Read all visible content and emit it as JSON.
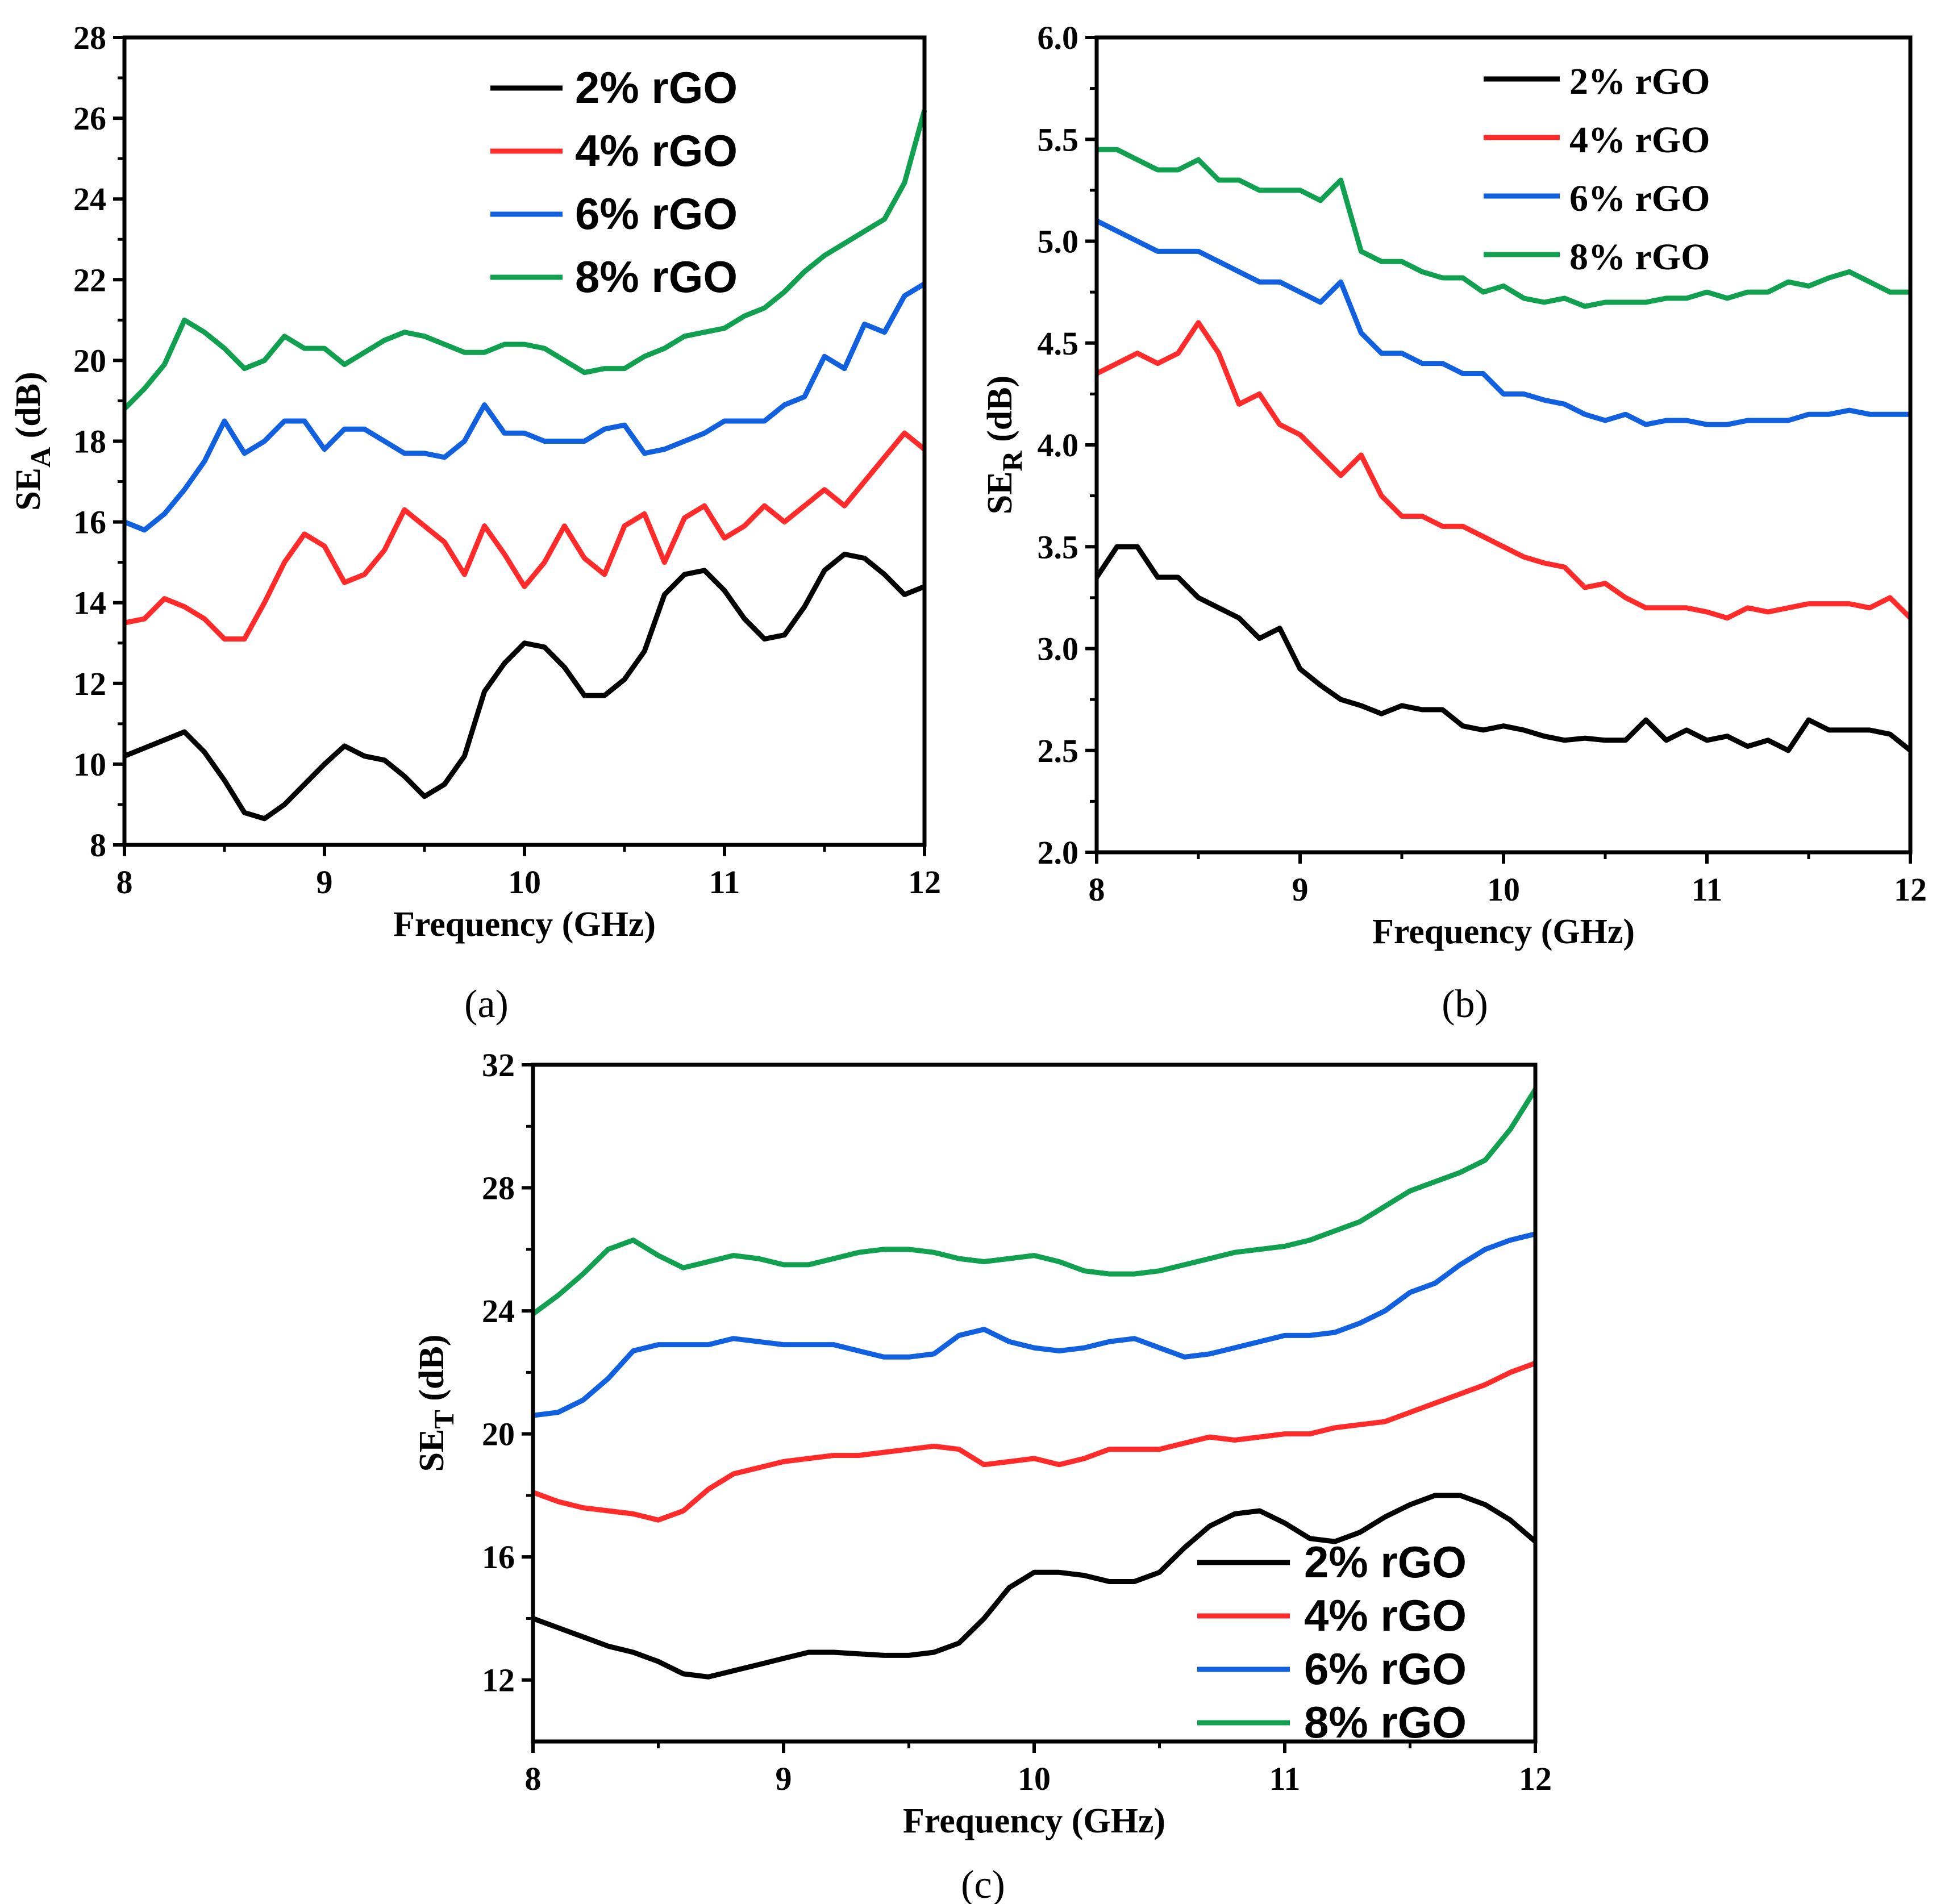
{
  "colors": {
    "2% rGO": "#000000",
    "4% rGO": "#ff2a2a",
    "6% rGO": "#1060e0",
    "8% rGO": "#10a050"
  },
  "chart_data": [
    {
      "type": "line",
      "panel_label": "(a)",
      "xlabel": "Frequency (GHz)",
      "ylabel": "SE",
      "ylabel_sub": "A",
      "ylabel_unit": " (dB)",
      "xlim": [
        8,
        12
      ],
      "ylim": [
        8,
        28
      ],
      "xticks": [
        8,
        9,
        10,
        11,
        12
      ],
      "yticks": [
        8,
        10,
        12,
        14,
        16,
        18,
        20,
        22,
        24,
        26,
        28
      ],
      "legend": "top-right",
      "legend_style": "sans",
      "x": [
        8.0,
        8.1,
        8.2,
        8.3,
        8.4,
        8.5,
        8.6,
        8.7,
        8.8,
        8.9,
        9.0,
        9.1,
        9.2,
        9.3,
        9.4,
        9.5,
        9.6,
        9.7,
        9.8,
        9.9,
        10.0,
        10.1,
        10.2,
        10.3,
        10.4,
        10.5,
        10.6,
        10.7,
        10.8,
        10.9,
        11.0,
        11.1,
        11.2,
        11.3,
        11.4,
        11.5,
        11.6,
        11.7,
        11.8,
        11.9,
        12.0
      ],
      "series": [
        {
          "name": "2% rGO",
          "values": [
            10.2,
            10.4,
            10.6,
            10.8,
            10.3,
            9.6,
            8.8,
            8.65,
            9.0,
            9.5,
            10.0,
            10.45,
            10.2,
            10.1,
            9.7,
            9.2,
            9.5,
            10.2,
            11.8,
            12.5,
            13.0,
            12.9,
            12.4,
            11.7,
            11.7,
            12.1,
            12.8,
            14.2,
            14.7,
            14.8,
            14.3,
            13.6,
            13.1,
            13.2,
            13.9,
            14.8,
            15.2,
            15.1,
            14.7,
            14.2,
            14.4
          ]
        },
        {
          "name": "4% rGO",
          "values": [
            13.5,
            13.6,
            14.1,
            13.9,
            13.6,
            13.1,
            13.1,
            14.0,
            15.0,
            15.7,
            15.4,
            14.5,
            14.7,
            15.3,
            16.3,
            15.9,
            15.5,
            14.7,
            15.9,
            15.2,
            14.4,
            15.0,
            15.9,
            15.1,
            14.7,
            15.9,
            16.2,
            15.0,
            16.1,
            16.4,
            15.6,
            15.9,
            16.4,
            16.0,
            16.4,
            16.8,
            16.4,
            17.0,
            17.6,
            18.2,
            17.8
          ]
        },
        {
          "name": "6% rGO",
          "values": [
            16.0,
            15.8,
            16.2,
            16.8,
            17.5,
            18.5,
            17.7,
            18.0,
            18.5,
            18.5,
            17.8,
            18.3,
            18.3,
            18.0,
            17.7,
            17.7,
            17.6,
            18.0,
            18.9,
            18.2,
            18.2,
            18.0,
            18.0,
            18.0,
            18.3,
            18.4,
            17.7,
            17.8,
            18.0,
            18.2,
            18.5,
            18.5,
            18.5,
            18.9,
            19.1,
            20.1,
            19.8,
            20.9,
            20.7,
            21.6,
            21.9
          ]
        },
        {
          "name": "8% rGO",
          "values": [
            18.8,
            19.3,
            19.9,
            21.0,
            20.7,
            20.3,
            19.8,
            20.0,
            20.6,
            20.3,
            20.3,
            19.9,
            20.2,
            20.5,
            20.7,
            20.6,
            20.4,
            20.2,
            20.2,
            20.4,
            20.4,
            20.3,
            20.0,
            19.7,
            19.8,
            19.8,
            20.1,
            20.3,
            20.6,
            20.7,
            20.8,
            21.1,
            21.3,
            21.7,
            22.2,
            22.6,
            22.9,
            23.2,
            23.5,
            24.4,
            26.2
          ]
        }
      ]
    },
    {
      "type": "line",
      "panel_label": "(b)",
      "xlabel": "Frequency (GHz)",
      "ylabel": "SE",
      "ylabel_sub": "R",
      "ylabel_unit": " (dB)",
      "xlim": [
        8,
        12
      ],
      "ylim": [
        2.0,
        6.0
      ],
      "xticks": [
        8,
        9,
        10,
        11,
        12
      ],
      "yticks": [
        "2.0",
        "2.5",
        "3.0",
        "3.5",
        "4.0",
        "4.5",
        "5.0",
        "5.5",
        "6.0"
      ],
      "legend": "top-right",
      "legend_style": "serif",
      "x": [
        8.0,
        8.1,
        8.2,
        8.3,
        8.4,
        8.5,
        8.6,
        8.7,
        8.8,
        8.9,
        9.0,
        9.1,
        9.2,
        9.3,
        9.4,
        9.5,
        9.6,
        9.7,
        9.8,
        9.9,
        10.0,
        10.1,
        10.2,
        10.3,
        10.4,
        10.5,
        10.6,
        10.7,
        10.8,
        10.9,
        11.0,
        11.1,
        11.2,
        11.3,
        11.4,
        11.5,
        11.6,
        11.7,
        11.8,
        11.9,
        12.0
      ],
      "series": [
        {
          "name": "2% rGO",
          "values": [
            3.35,
            3.5,
            3.5,
            3.35,
            3.35,
            3.25,
            3.2,
            3.15,
            3.05,
            3.1,
            2.9,
            2.82,
            2.75,
            2.72,
            2.68,
            2.72,
            2.7,
            2.7,
            2.62,
            2.6,
            2.62,
            2.6,
            2.57,
            2.55,
            2.56,
            2.55,
            2.55,
            2.65,
            2.55,
            2.6,
            2.55,
            2.57,
            2.52,
            2.55,
            2.5,
            2.65,
            2.6,
            2.6,
            2.6,
            2.58,
            2.5
          ]
        },
        {
          "name": "4% rGO",
          "values": [
            4.35,
            4.4,
            4.45,
            4.4,
            4.45,
            4.6,
            4.45,
            4.2,
            4.25,
            4.1,
            4.05,
            3.95,
            3.85,
            3.95,
            3.75,
            3.65,
            3.65,
            3.6,
            3.6,
            3.55,
            3.5,
            3.45,
            3.42,
            3.4,
            3.3,
            3.32,
            3.25,
            3.2,
            3.2,
            3.2,
            3.18,
            3.15,
            3.2,
            3.18,
            3.2,
            3.22,
            3.22,
            3.22,
            3.2,
            3.25,
            3.15
          ]
        },
        {
          "name": "6% rGO",
          "values": [
            5.1,
            5.05,
            5.0,
            4.95,
            4.95,
            4.95,
            4.9,
            4.85,
            4.8,
            4.8,
            4.75,
            4.7,
            4.8,
            4.55,
            4.45,
            4.45,
            4.4,
            4.4,
            4.35,
            4.35,
            4.25,
            4.25,
            4.22,
            4.2,
            4.15,
            4.12,
            4.15,
            4.1,
            4.12,
            4.12,
            4.1,
            4.1,
            4.12,
            4.12,
            4.12,
            4.15,
            4.15,
            4.17,
            4.15,
            4.15,
            4.15
          ]
        },
        {
          "name": "8% rGO",
          "values": [
            5.45,
            5.45,
            5.4,
            5.35,
            5.35,
            5.4,
            5.3,
            5.3,
            5.25,
            5.25,
            5.25,
            5.2,
            5.3,
            4.95,
            4.9,
            4.9,
            4.85,
            4.82,
            4.82,
            4.75,
            4.78,
            4.72,
            4.7,
            4.72,
            4.68,
            4.7,
            4.7,
            4.7,
            4.72,
            4.72,
            4.75,
            4.72,
            4.75,
            4.75,
            4.8,
            4.78,
            4.82,
            4.85,
            4.8,
            4.75,
            4.75
          ]
        }
      ]
    },
    {
      "type": "line",
      "panel_label": "(c)",
      "xlabel": "Frequency (GHz)",
      "ylabel": "SE",
      "ylabel_sub": "T",
      "ylabel_unit": " (dB)",
      "xlim": [
        8,
        12
      ],
      "ylim": [
        10,
        32
      ],
      "xticks": [
        8,
        9,
        10,
        11,
        12
      ],
      "yticks": [
        12,
        16,
        20,
        24,
        28,
        32
      ],
      "legend": "bottom-right",
      "legend_style": "sans",
      "x": [
        8.0,
        8.1,
        8.2,
        8.3,
        8.4,
        8.5,
        8.6,
        8.7,
        8.8,
        8.9,
        9.0,
        9.1,
        9.2,
        9.3,
        9.4,
        9.5,
        9.6,
        9.7,
        9.8,
        9.9,
        10.0,
        10.1,
        10.2,
        10.3,
        10.4,
        10.5,
        10.6,
        10.7,
        10.8,
        10.9,
        11.0,
        11.1,
        11.2,
        11.3,
        11.4,
        11.5,
        11.6,
        11.7,
        11.8,
        11.9,
        12.0
      ],
      "series": [
        {
          "name": "2% rGO",
          "values": [
            14.0,
            13.7,
            13.4,
            13.1,
            12.9,
            12.6,
            12.2,
            12.1,
            12.3,
            12.5,
            12.7,
            12.9,
            12.9,
            12.85,
            12.8,
            12.8,
            12.9,
            13.2,
            14.0,
            15.0,
            15.5,
            15.5,
            15.4,
            15.2,
            15.2,
            15.5,
            16.3,
            17.0,
            17.4,
            17.5,
            17.1,
            16.6,
            16.5,
            16.8,
            17.3,
            17.7,
            18.0,
            18.0,
            17.7,
            17.2,
            16.5
          ]
        },
        {
          "name": "4% rGO",
          "values": [
            18.1,
            17.8,
            17.6,
            17.5,
            17.4,
            17.2,
            17.5,
            18.2,
            18.7,
            18.9,
            19.1,
            19.2,
            19.3,
            19.3,
            19.4,
            19.5,
            19.6,
            19.5,
            19.0,
            19.1,
            19.2,
            19.0,
            19.2,
            19.5,
            19.5,
            19.5,
            19.7,
            19.9,
            19.8,
            19.9,
            20.0,
            20.0,
            20.2,
            20.3,
            20.4,
            20.7,
            21.0,
            21.3,
            21.6,
            22.0,
            22.3
          ]
        },
        {
          "name": "6% rGO",
          "values": [
            20.6,
            20.7,
            21.1,
            21.8,
            22.7,
            22.9,
            22.9,
            22.9,
            23.1,
            23.0,
            22.9,
            22.9,
            22.9,
            22.7,
            22.5,
            22.5,
            22.6,
            23.2,
            23.4,
            23.0,
            22.8,
            22.7,
            22.8,
            23.0,
            23.1,
            22.8,
            22.5,
            22.6,
            22.8,
            23.0,
            23.2,
            23.2,
            23.3,
            23.6,
            24.0,
            24.6,
            24.9,
            25.5,
            26.0,
            26.3,
            26.5
          ]
        },
        {
          "name": "8% rGO",
          "values": [
            23.9,
            24.5,
            25.2,
            26.0,
            26.3,
            25.8,
            25.4,
            25.6,
            25.8,
            25.7,
            25.5,
            25.5,
            25.7,
            25.9,
            26.0,
            26.0,
            25.9,
            25.7,
            25.6,
            25.7,
            25.8,
            25.6,
            25.3,
            25.2,
            25.2,
            25.3,
            25.5,
            25.7,
            25.9,
            26.0,
            26.1,
            26.3,
            26.6,
            26.9,
            27.4,
            27.9,
            28.2,
            28.5,
            28.9,
            29.9,
            31.2
          ]
        }
      ]
    }
  ]
}
